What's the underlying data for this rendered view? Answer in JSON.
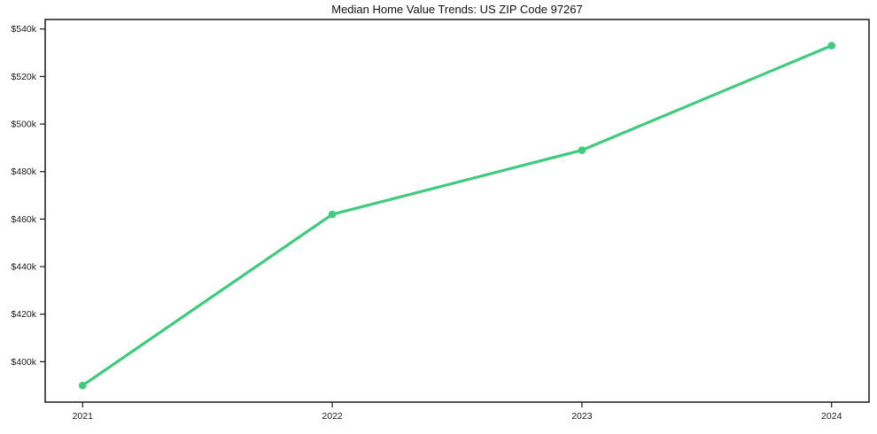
{
  "chart_data": {
    "type": "line",
    "title": "Median Home Value Trends: US ZIP Code 97267",
    "categories": [
      "2021",
      "2022",
      "2023",
      "2024"
    ],
    "series": [
      {
        "name": "Median Home Value",
        "values": [
          390,
          462,
          489,
          533
        ]
      }
    ],
    "unit": "USD thousands",
    "xlabel": "",
    "ylabel": "",
    "y_ticks": [
      {
        "value": 400,
        "label": "$400k"
      },
      {
        "value": 420,
        "label": "$420k"
      },
      {
        "value": 440,
        "label": "$440k"
      },
      {
        "value": 460,
        "label": "$460k"
      },
      {
        "value": 480,
        "label": "$480k"
      },
      {
        "value": 500,
        "label": "$500k"
      },
      {
        "value": 520,
        "label": "$520k"
      },
      {
        "value": 540,
        "label": "$540k"
      }
    ],
    "ylim": [
      383,
      544
    ],
    "xlim": [
      -0.15,
      3.15
    ],
    "grid": false,
    "legend": "none",
    "marker": "circle",
    "line_width": 3.2,
    "colors": {
      "line": "#3ecb7d",
      "axis": "#1a1a1a",
      "text": "#1a1a1a",
      "background": "#ffffff"
    }
  }
}
